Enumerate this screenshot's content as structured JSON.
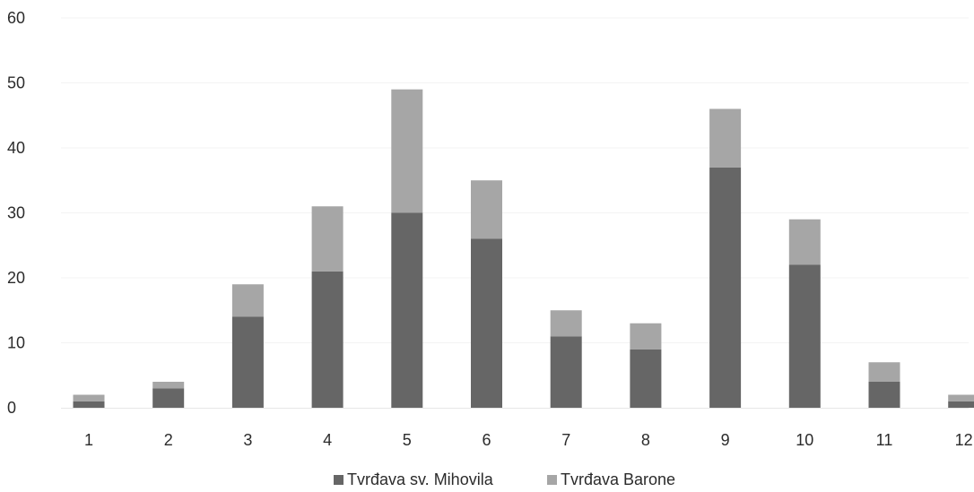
{
  "chart_data": {
    "type": "bar",
    "stacked": true,
    "title": "",
    "xlabel": "",
    "ylabel": "",
    "categories": [
      "1",
      "2",
      "3",
      "4",
      "5",
      "6",
      "7",
      "8",
      "9",
      "10",
      "11",
      "12"
    ],
    "series": [
      {
        "name": "Tvrđava sv. Mihovila",
        "color": "#666666",
        "values": [
          1,
          3,
          14,
          21,
          30,
          26,
          11,
          9,
          37,
          22,
          4,
          1
        ]
      },
      {
        "name": "Tvrđava Barone",
        "color": "#a6a6a6",
        "values": [
          1,
          1,
          5,
          10,
          19,
          9,
          4,
          4,
          9,
          7,
          3,
          1
        ]
      }
    ],
    "ylim": [
      0,
      60
    ],
    "yticks": [
      "0",
      "10",
      "20",
      "30",
      "40",
      "50",
      "60"
    ],
    "grid": "faint horizontal",
    "legend_position": "bottom-center"
  }
}
